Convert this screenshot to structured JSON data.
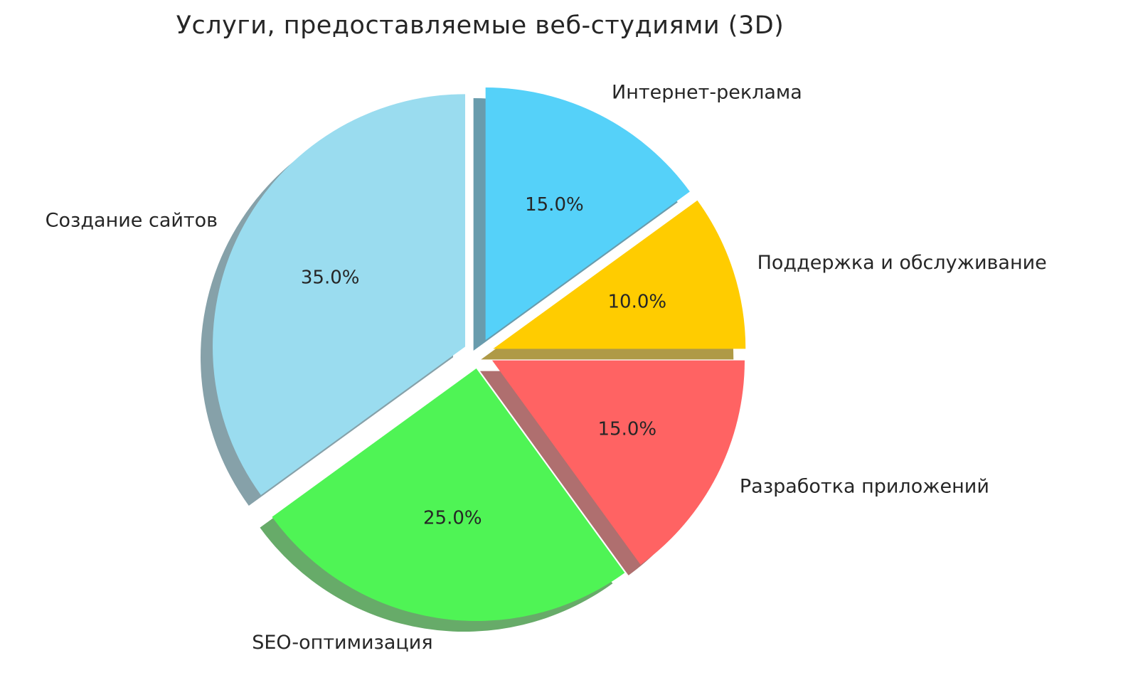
{
  "title": "Услуги, предоставляемые веб-студиями (3D)",
  "chart_data": {
    "type": "pie",
    "title": "Услуги, предоставляемые веб-студиями (3D)",
    "start_angle": 90,
    "direction": "clockwise",
    "shadow": true,
    "explode": 0.06,
    "legend": "none",
    "background": "#ffffff",
    "text_color": "#262626",
    "slices": [
      {
        "label": "Интернет-реклама",
        "value": 15.0,
        "pct_label": "15.0%",
        "color": "#55D1F9"
      },
      {
        "label": "Поддержка и обслуживание",
        "value": 10.0,
        "pct_label": "10.0%",
        "color": "#FFCC00"
      },
      {
        "label": "Разработка приложений",
        "value": 15.0,
        "pct_label": "15.0%",
        "color": "#FF6363"
      },
      {
        "label": "SEO-оптимизация",
        "value": 25.0,
        "pct_label": "25.0%",
        "color": "#4FF455"
      },
      {
        "label": "Создание сайтов",
        "value": 35.0,
        "pct_label": "35.0%",
        "color": "#9ADCEF"
      }
    ]
  }
}
